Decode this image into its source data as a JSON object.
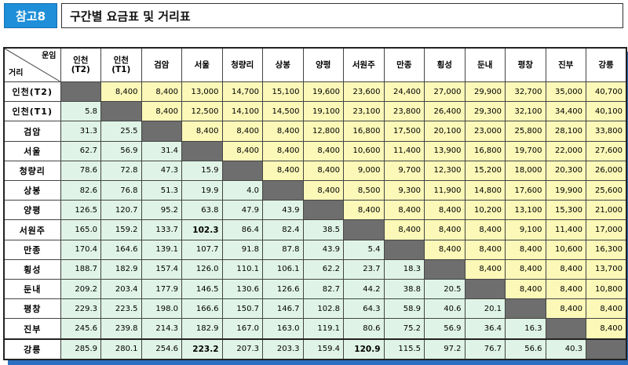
{
  "header": {
    "tag": "참고8",
    "title": "구간별 요금표 및 거리표"
  },
  "table": {
    "corner_fare": "운임",
    "corner_distance": "거리",
    "columns": [
      "인천\n(T2)",
      "인천\n(T1)",
      "검암",
      "서울",
      "청량리",
      "상봉",
      "양평",
      "서원주",
      "만종",
      "횡성",
      "둔내",
      "평창",
      "진부",
      "강릉"
    ],
    "rows": [
      {
        "label": "인천(T2)",
        "cells": [
          "",
          "8,400",
          "8,400",
          "13,000",
          "14,700",
          "15,100",
          "19,600",
          "23,600",
          "24,400",
          "27,000",
          "29,900",
          "32,700",
          "35,000",
          "40,700"
        ]
      },
      {
        "label": "인천(T1)",
        "cells": [
          "5.8",
          "",
          "8,400",
          "12,500",
          "14,100",
          "14,500",
          "19,100",
          "23,100",
          "23,800",
          "26,400",
          "29,300",
          "32,100",
          "34,400",
          "40,100"
        ]
      },
      {
        "label": "검암",
        "cells": [
          "31.3",
          "25.5",
          "",
          "8,400",
          "8,400",
          "8,400",
          "12,800",
          "16,800",
          "17,500",
          "20,100",
          "23,000",
          "25,800",
          "28,100",
          "33,800"
        ]
      },
      {
        "label": "서울",
        "cells": [
          "62.7",
          "56.9",
          "31.4",
          "",
          "8,400",
          "8,400",
          "8,400",
          "10,600",
          "11,400",
          "13,900",
          "16,800",
          "19,700",
          "22,000",
          "27,600"
        ]
      },
      {
        "label": "청량리",
        "cells": [
          "78.6",
          "72.8",
          "47.3",
          "15.9",
          "",
          "8,400",
          "8,400",
          "9,000",
          "9,700",
          "12,300",
          "15,200",
          "18,000",
          "20,300",
          "26,000"
        ]
      },
      {
        "label": "상봉",
        "cells": [
          "82.6",
          "76.8",
          "51.3",
          "19.9",
          "4.0",
          "",
          "8,400",
          "8,500",
          "9,300",
          "11,900",
          "14,800",
          "17,600",
          "19,900",
          "25,600"
        ]
      },
      {
        "label": "양평",
        "cells": [
          "126.5",
          "120.7",
          "95.2",
          "63.8",
          "47.9",
          "43.9",
          "",
          "8,400",
          "8,400",
          "8,400",
          "10,200",
          "13,100",
          "15,300",
          "21,000"
        ]
      },
      {
        "label": "서원주",
        "cells": [
          "165.0",
          "159.2",
          "133.7",
          "102.3",
          "86.4",
          "82.4",
          "38.5",
          "",
          "8,400",
          "8,400",
          "8,400",
          "9,100",
          "11,400",
          "17,000"
        ]
      },
      {
        "label": "만종",
        "cells": [
          "170.4",
          "164.6",
          "139.1",
          "107.7",
          "91.8",
          "87.8",
          "43.9",
          "5.4",
          "",
          "8,400",
          "8,400",
          "8,400",
          "10,600",
          "16,300"
        ]
      },
      {
        "label": "횡성",
        "cells": [
          "188.7",
          "182.9",
          "157.4",
          "126.0",
          "110.1",
          "106.1",
          "62.2",
          "23.7",
          "18.3",
          "",
          "8,400",
          "8,400",
          "8,400",
          "13,700"
        ]
      },
      {
        "label": "둔내",
        "cells": [
          "209.2",
          "203.4",
          "177.9",
          "146.5",
          "130.6",
          "126.6",
          "82.7",
          "44.2",
          "38.8",
          "20.5",
          "",
          "8,400",
          "8,400",
          "10,800"
        ]
      },
      {
        "label": "평창",
        "cells": [
          "229.3",
          "223.5",
          "198.0",
          "166.6",
          "150.7",
          "146.7",
          "102.8",
          "64.3",
          "58.9",
          "40.6",
          "20.1",
          "",
          "8,400",
          "8,400"
        ]
      },
      {
        "label": "진부",
        "cells": [
          "245.6",
          "239.8",
          "214.3",
          "182.9",
          "167.0",
          "163.0",
          "119.1",
          "80.6",
          "75.2",
          "56.9",
          "36.4",
          "16.3",
          "",
          "8,400"
        ]
      },
      {
        "label": "강릉",
        "cells": [
          "285.9",
          "280.1",
          "254.6",
          "223.2",
          "207.3",
          "203.3",
          "159.4",
          "120.9",
          "115.5",
          "97.2",
          "76.7",
          "56.6",
          "40.3",
          ""
        ]
      }
    ],
    "bold_cells": [
      [
        7,
        3
      ],
      [
        13,
        3
      ],
      [
        13,
        7
      ]
    ],
    "colors": {
      "fare_bg": "#fbf8b8",
      "distance_bg": "#dff4e6",
      "diagonal_bg": "#6e6e6e",
      "tag_bg": "#1e8fd8",
      "shadow": "#2a6fc0"
    }
  }
}
